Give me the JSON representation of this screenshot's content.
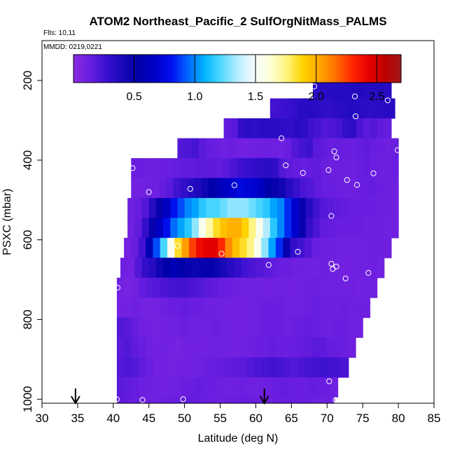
{
  "chart_data": {
    "type": "heatmap",
    "title": "ATOM2 Northeast_Pacific_2 SulfOrgNitMass_PALMS",
    "flights_note": "Flts: 10,11",
    "date_note": "MMDD: 0219,0221",
    "xlabel": "Latitude (deg N)",
    "ylabel": "PSXC (mbar)",
    "xlim": [
      30,
      85
    ],
    "ylim": [
      1010,
      100
    ],
    "x_ticks": [
      "30",
      "35",
      "40",
      "45",
      "50",
      "55",
      "60",
      "65",
      "70",
      "75",
      "80",
      "85"
    ],
    "y_ticks": [
      "200",
      "400",
      "600",
      "800",
      "1000"
    ],
    "colorbar": {
      "range": [
        0,
        2.7
      ],
      "ticks": [
        "0.5",
        "1.0",
        "1.5",
        "2.0",
        "2.5"
      ],
      "colors": [
        "#8a2be2",
        "#6a1ee0",
        "#3a10d0",
        "#1808b8",
        "#0000a8",
        "#0000c8",
        "#0010f0",
        "#0068ff",
        "#00b4ff",
        "#50d8ff",
        "#b4ecff",
        "#f4fbff",
        "#ffffd8",
        "#fff480",
        "#ffd400",
        "#ffa800",
        "#ff7000",
        "#ff2800",
        "#e80000",
        "#c00000",
        "#a01818"
      ]
    },
    "rows": [
      {
        "p": 220,
        "x0": 68.0,
        "x1": 79.0,
        "v": [
          0.33,
          0.35,
          0.34,
          0.36,
          0.35,
          0.36,
          0.37,
          0.36,
          0.35,
          0.36,
          0.34
        ]
      },
      {
        "p": 270,
        "x0": 62.0,
        "x1": 79.5,
        "v": [
          0.25,
          0.26,
          0.27,
          0.3,
          0.33,
          0.35,
          0.34,
          0.32,
          0.31,
          0.33,
          0.34,
          0.36,
          0.35,
          0.33,
          0.32,
          0.33,
          0.34,
          0.35
        ]
      },
      {
        "p": 320,
        "x0": 55.5,
        "x1": 79.0,
        "v": [
          0.16,
          0.18,
          0.3,
          0.33,
          0.32,
          0.33,
          0.34,
          0.33,
          0.32,
          0.31,
          0.33,
          0.32,
          0.26,
          0.24,
          0.2,
          0.22,
          0.24,
          0.3,
          0.32,
          0.22,
          0.18,
          0.2,
          0.16,
          0.15
        ]
      },
      {
        "p": 370,
        "x0": 49.0,
        "x1": 80.0,
        "v": [
          0.2,
          0.22,
          0.24,
          0.18,
          0.15,
          0.14,
          0.12,
          0.13,
          0.12,
          0.1,
          0.11,
          0.12,
          0.13,
          0.12,
          0.11,
          0.14,
          0.2,
          0.24,
          0.26,
          0.18,
          0.16,
          0.14,
          0.15,
          0.14,
          0.13,
          0.15,
          0.16,
          0.14,
          0.13,
          0.12,
          0.14
        ]
      },
      {
        "p": 420,
        "x0": 42.5,
        "x1": 80.0,
        "v": [
          0.14,
          0.13,
          0.12,
          0.12,
          0.13,
          0.14,
          0.15,
          0.16,
          0.16,
          0.17,
          0.18,
          0.17,
          0.16,
          0.18,
          0.22,
          0.26,
          0.28,
          0.3,
          0.32,
          0.34,
          0.3,
          0.2,
          0.16,
          0.15,
          0.14,
          0.15,
          0.16,
          0.14,
          0.12,
          0.13,
          0.12,
          0.12,
          0.14,
          0.15,
          0.13,
          0.12,
          0.12,
          0.13
        ]
      },
      {
        "p": 470,
        "x0": 42.5,
        "x1": 80.0,
        "v": [
          0.1,
          0.1,
          0.12,
          0.12,
          0.15,
          0.18,
          0.25,
          0.3,
          0.35,
          0.38,
          0.45,
          0.55,
          0.6,
          0.65,
          0.7,
          0.75,
          0.72,
          0.7,
          0.65,
          0.55,
          0.5,
          0.45,
          0.35,
          0.28,
          0.22,
          0.2,
          0.16,
          0.14,
          0.14,
          0.13,
          0.12,
          0.12,
          0.13,
          0.14,
          0.15,
          0.13,
          0.12,
          0.12
        ]
      },
      {
        "p": 520,
        "x0": 42.0,
        "x1": 80.0,
        "v": [
          0.12,
          0.14,
          0.2,
          0.35,
          0.5,
          0.65,
          0.8,
          0.9,
          1.0,
          1.05,
          1.15,
          1.2,
          1.2,
          1.25,
          1.3,
          1.3,
          1.3,
          1.25,
          1.2,
          1.15,
          1.05,
          1.0,
          0.85,
          0.7,
          0.5,
          0.35,
          0.25,
          0.2,
          0.18,
          0.16,
          0.15,
          0.14,
          0.14,
          0.13,
          0.13,
          0.12,
          0.12,
          0.12
        ]
      },
      {
        "p": 570,
        "x0": 42.0,
        "x1": 80.0,
        "v": [
          0.12,
          0.16,
          0.3,
          0.5,
          0.65,
          0.8,
          0.95,
          1.05,
          1.15,
          1.3,
          1.55,
          1.7,
          1.85,
          1.95,
          2.0,
          2.0,
          1.9,
          1.75,
          1.55,
          1.35,
          1.15,
          1.0,
          0.85,
          0.7,
          0.5,
          0.3,
          0.22,
          0.16,
          0.15,
          0.14,
          0.13,
          0.14,
          0.13,
          0.12,
          0.13,
          0.12,
          0.11,
          0.12
        ]
      },
      {
        "p": 620,
        "x0": 41.5,
        "x1": 79.0,
        "v": [
          0.1,
          0.14,
          0.25,
          0.6,
          0.9,
          1.2,
          1.55,
          1.85,
          2.05,
          2.25,
          2.4,
          2.45,
          2.45,
          2.3,
          2.1,
          1.95,
          1.85,
          1.75,
          1.55,
          1.3,
          1.05,
          0.85,
          0.5,
          0.3,
          0.25,
          0.2,
          0.14,
          0.13,
          0.12,
          0.12,
          0.11,
          0.12,
          0.11,
          0.12,
          0.13,
          0.12,
          0.12
        ]
      },
      {
        "p": 670,
        "x0": 41.0,
        "x1": 78.0,
        "v": [
          0.12,
          0.1,
          0.2,
          0.3,
          0.35,
          0.45,
          0.55,
          0.6,
          0.55,
          0.5,
          0.48,
          0.5,
          0.52,
          0.48,
          0.4,
          0.35,
          0.3,
          0.25,
          0.22,
          0.2,
          0.18,
          0.16,
          0.14,
          0.13,
          0.12,
          0.12,
          0.11,
          0.11,
          0.12,
          0.12,
          0.11,
          0.1,
          0.11,
          0.12,
          0.11,
          0.12,
          0.11
        ]
      },
      {
        "p": 720,
        "x0": 40.5,
        "x1": 77.0,
        "v": [
          0.1,
          0.08,
          0.1,
          0.15,
          0.18,
          0.2,
          0.22,
          0.24,
          0.25,
          0.24,
          0.22,
          0.2,
          0.18,
          0.16,
          0.14,
          0.13,
          0.12,
          0.11,
          0.12,
          0.11,
          0.1,
          0.11,
          0.12,
          0.11,
          0.1,
          0.11,
          0.12,
          0.13,
          0.12,
          0.11,
          0.12,
          0.11,
          0.12,
          0.1,
          0.11,
          0.12
        ]
      },
      {
        "p": 770,
        "x0": 40.5,
        "x1": 76.0,
        "v": [
          0.1,
          0.1,
          0.12,
          0.1,
          0.09,
          0.1,
          0.12,
          0.13,
          0.14,
          0.15,
          0.14,
          0.13,
          0.12,
          0.12,
          0.11,
          0.1,
          0.1,
          0.1,
          0.11,
          0.12,
          0.13,
          0.14,
          0.13,
          0.12,
          0.11,
          0.12,
          0.13,
          0.14,
          0.13,
          0.12,
          0.12,
          0.13,
          0.12,
          0.12,
          0.12
        ]
      },
      {
        "p": 820,
        "x0": 40.5,
        "x1": 75.0,
        "v": [
          0.2,
          0.18,
          0.15,
          0.12,
          0.1,
          0.09,
          0.1,
          0.11,
          0.12,
          0.13,
          0.12,
          0.11,
          0.12,
          0.13,
          0.12,
          0.11,
          0.1,
          0.1,
          0.11,
          0.12,
          0.13,
          0.14,
          0.13,
          0.12,
          0.13,
          0.14,
          0.15,
          0.14,
          0.13,
          0.12,
          0.13,
          0.14,
          0.12,
          0.11
        ]
      },
      {
        "p": 870,
        "x0": 40.5,
        "x1": 74.0,
        "v": [
          0.18,
          0.2,
          0.16,
          0.14,
          0.12,
          0.1,
          0.11,
          0.1,
          0.09,
          0.1,
          0.11,
          0.1,
          0.1,
          0.11,
          0.12,
          0.11,
          0.1,
          0.11,
          0.12,
          0.13,
          0.14,
          0.15,
          0.14,
          0.13,
          0.14,
          0.15,
          0.16,
          0.18,
          0.17,
          0.15,
          0.14,
          0.13,
          0.12
        ]
      },
      {
        "p": 920,
        "x0": 40.5,
        "x1": 73.0,
        "v": [
          0.2,
          0.22,
          0.2,
          0.16,
          0.13,
          0.1,
          0.1,
          0.09,
          0.1,
          0.1,
          0.11,
          0.12,
          0.13,
          0.14,
          0.15,
          0.16,
          0.17,
          0.18,
          0.2,
          0.22,
          0.24,
          0.25,
          0.24,
          0.22,
          0.2,
          0.22,
          0.24,
          0.25,
          0.26,
          0.25,
          0.24,
          0.22
        ]
      },
      {
        "p": 970,
        "x0": 40.5,
        "x1": 71.5,
        "v": [
          0.18,
          0.16,
          0.15,
          0.13,
          0.12,
          0.11,
          0.1,
          0.11,
          0.12,
          0.13,
          0.14,
          0.15,
          0.14,
          0.13,
          0.12,
          0.11,
          0.12,
          0.13,
          0.12,
          0.11,
          0.12,
          0.13,
          0.14,
          0.15,
          0.14,
          0.13,
          0.14,
          0.15,
          0.14,
          0.13,
          0.12
        ]
      },
      {
        "p": 1005,
        "x0": 40.5,
        "x1": 71.0,
        "v": [
          0.16,
          0.15,
          0.14,
          0.13,
          0.12,
          0.12,
          0.13,
          0.14,
          0.15,
          0.16,
          0.15,
          0.14,
          0.13,
          0.12,
          0.12,
          0.13,
          0.14,
          0.15,
          0.14,
          0.13,
          0.12,
          0.12,
          0.13,
          0.14,
          0.15,
          0.14,
          0.13,
          0.12,
          0.12,
          0.13
        ]
      }
    ],
    "points": [
      {
        "x": 68.2,
        "y": 215
      },
      {
        "x": 73.9,
        "y": 240
      },
      {
        "x": 78.5,
        "y": 250
      },
      {
        "x": 74.0,
        "y": 290
      },
      {
        "x": 63.6,
        "y": 345
      },
      {
        "x": 79.9,
        "y": 375
      },
      {
        "x": 71.0,
        "y": 378
      },
      {
        "x": 71.3,
        "y": 393
      },
      {
        "x": 42.7,
        "y": 420
      },
      {
        "x": 64.2,
        "y": 413
      },
      {
        "x": 70.2,
        "y": 425
      },
      {
        "x": 66.6,
        "y": 432
      },
      {
        "x": 76.5,
        "y": 433
      },
      {
        "x": 72.8,
        "y": 450
      },
      {
        "x": 74.2,
        "y": 462
      },
      {
        "x": 57.0,
        "y": 463
      },
      {
        "x": 50.8,
        "y": 472
      },
      {
        "x": 45.0,
        "y": 480
      },
      {
        "x": 70.6,
        "y": 540
      },
      {
        "x": 49.0,
        "y": 615
      },
      {
        "x": 55.2,
        "y": 635
      },
      {
        "x": 65.9,
        "y": 630
      },
      {
        "x": 80.2,
        "y": 607
      },
      {
        "x": 70.6,
        "y": 660
      },
      {
        "x": 61.8,
        "y": 663
      },
      {
        "x": 71.3,
        "y": 667
      },
      {
        "x": 70.8,
        "y": 673
      },
      {
        "x": 75.8,
        "y": 683
      },
      {
        "x": 72.6,
        "y": 697
      },
      {
        "x": 40.6,
        "y": 720
      },
      {
        "x": 70.3,
        "y": 955
      },
      {
        "x": 40.5,
        "y": 1000
      },
      {
        "x": 44.1,
        "y": 1002
      },
      {
        "x": 49.8,
        "y": 1000
      },
      {
        "x": 71.2,
        "y": 1002
      }
    ],
    "arrows_x": [
      34.7,
      61.2
    ]
  }
}
